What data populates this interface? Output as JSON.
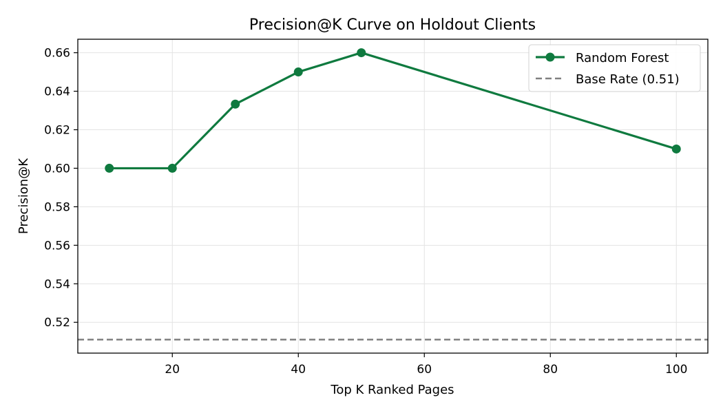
{
  "chart_data": {
    "type": "line",
    "title": "Precision@K Curve on Holdout Clients",
    "xlabel": "Top K Ranked Pages",
    "ylabel": "Precision@K",
    "xlim": [
      5,
      105
    ],
    "ylim": [
      0.504,
      0.667
    ],
    "x_ticks": [
      20,
      40,
      60,
      80,
      100
    ],
    "y_ticks": [
      0.52,
      0.54,
      0.56,
      0.58,
      0.6,
      0.62,
      0.64,
      0.66
    ],
    "grid": true,
    "legend_position": "top-right",
    "series": [
      {
        "name": "Random Forest",
        "color": "#0f7a3f",
        "marker": "circle",
        "line_style": "solid",
        "x": [
          10,
          20,
          30,
          40,
          50,
          100
        ],
        "y": [
          0.6,
          0.6,
          0.6333,
          0.65,
          0.66,
          0.61
        ]
      }
    ],
    "reference_lines": [
      {
        "name": "Base Rate (0.51)",
        "orientation": "horizontal",
        "value": 0.511,
        "color": "#808080",
        "line_style": "dashed"
      }
    ]
  }
}
